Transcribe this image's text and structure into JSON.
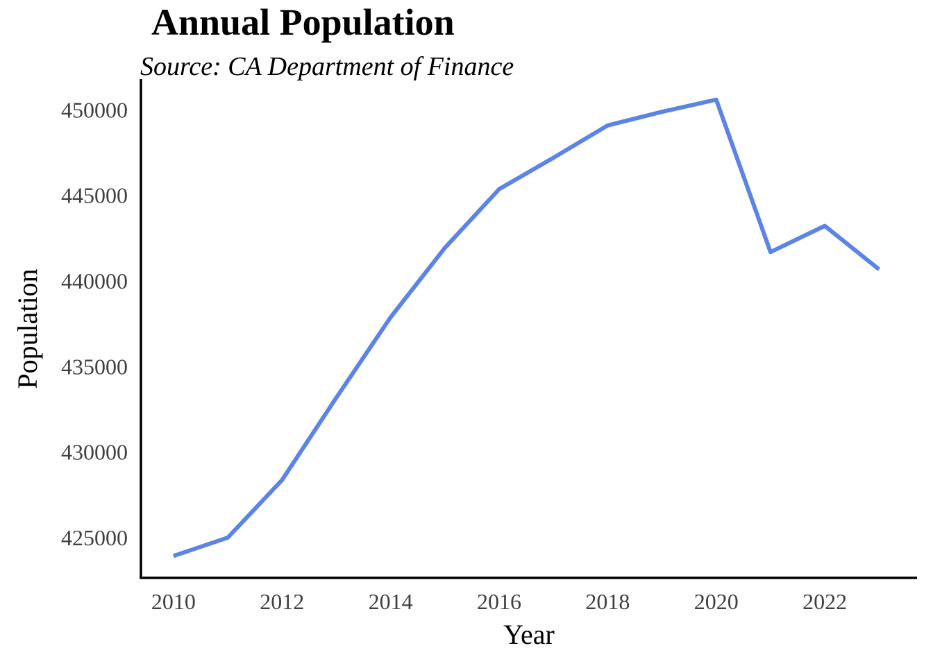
{
  "chart_data": {
    "type": "line",
    "title": "Annual Population",
    "subtitle": "Source: CA Department of Finance",
    "xlabel": "Year",
    "ylabel": "Population",
    "x": [
      2010,
      2011,
      2012,
      2013,
      2014,
      2015,
      2016,
      2017,
      2018,
      2019,
      2020,
      2021,
      2022,
      2023
    ],
    "series": [
      {
        "values": [
          423932,
          425003,
          428368,
          433180,
          437879,
          441937,
          445370,
          447201,
          449091,
          449888,
          450599,
          441694,
          443221,
          440680
        ]
      }
    ],
    "xlim": [
      2009.4,
      2023.7
    ],
    "ylim": [
      422650,
      451800
    ],
    "x_ticks": [
      2010,
      2012,
      2014,
      2016,
      2018,
      2020,
      2022
    ],
    "y_ticks": [
      425000,
      430000,
      435000,
      440000,
      445000,
      450000
    ],
    "grid": false,
    "legend": "none",
    "colors": {
      "line": "#5b84e6"
    }
  }
}
